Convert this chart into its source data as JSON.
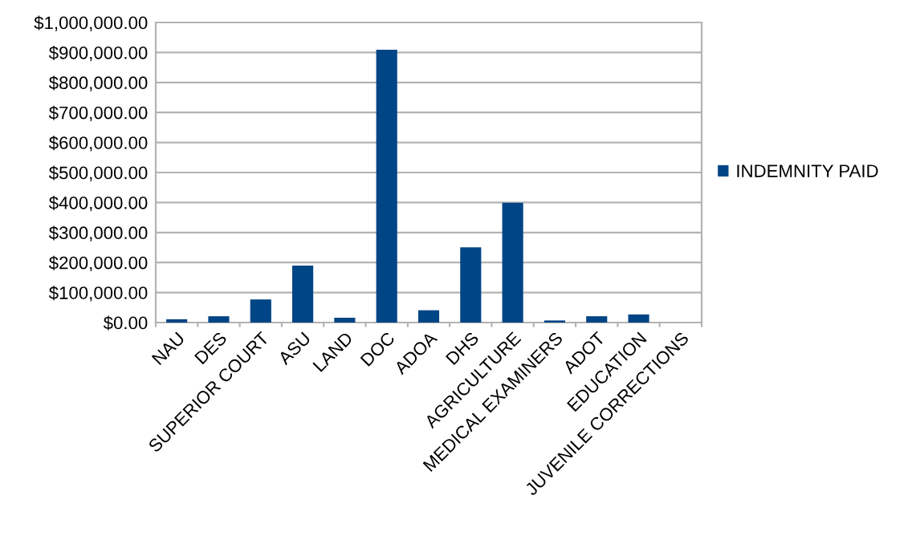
{
  "chart_data": {
    "type": "bar",
    "categories": [
      "NAU",
      "DES",
      "SUPERIOR COURT",
      "ASU",
      "LAND",
      "DOC",
      "ADOA",
      "DHS",
      "AGRICULTURE",
      "MEDICAL EXAMINERS",
      "ADOT",
      "EDUCATION",
      "JUVENILE CORRECTIONS"
    ],
    "series": [
      {
        "name": "INDEMNITY PAID",
        "color": "#004586",
        "values": [
          11000,
          21000,
          77000,
          190000,
          16000,
          909000,
          41000,
          251000,
          399000,
          7000,
          21000,
          27000,
          0
        ]
      }
    ],
    "ylim": [
      0,
      1000000
    ],
    "yticks": [
      {
        "value": 0,
        "label": "$0.00"
      },
      {
        "value": 100000,
        "label": "$100,000.00"
      },
      {
        "value": 200000,
        "label": "$200,000.00"
      },
      {
        "value": 300000,
        "label": "$300,000.00"
      },
      {
        "value": 400000,
        "label": "$400,000.00"
      },
      {
        "value": 500000,
        "label": "$500,000.00"
      },
      {
        "value": 600000,
        "label": "$600,000.00"
      },
      {
        "value": 700000,
        "label": "$700,000.00"
      },
      {
        "value": 800000,
        "label": "$800,000.00"
      },
      {
        "value": 900000,
        "label": "$900,000.00"
      },
      {
        "value": 1000000,
        "label": "$1,000,000.00"
      }
    ],
    "grid": "y",
    "legend": "right"
  }
}
